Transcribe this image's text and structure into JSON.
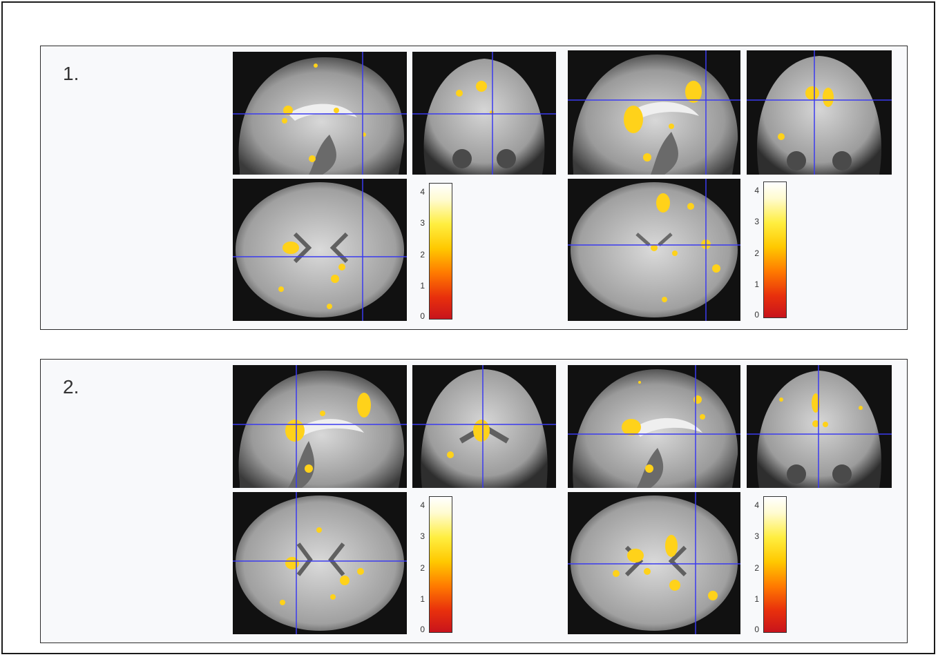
{
  "panels": [
    {
      "label": "1.",
      "colorbar_ticks": [
        "4",
        "3",
        "2",
        "1",
        "0"
      ]
    },
    {
      "label": "2.",
      "colorbar_ticks": [
        "4",
        "3",
        "2",
        "1",
        "0"
      ]
    }
  ],
  "colors": {
    "background": "#ffffff",
    "panel_background": "#f8f9fb",
    "crosshair": "#3a3af0",
    "activation": "#ffd21a",
    "slice_background": "#111111"
  }
}
